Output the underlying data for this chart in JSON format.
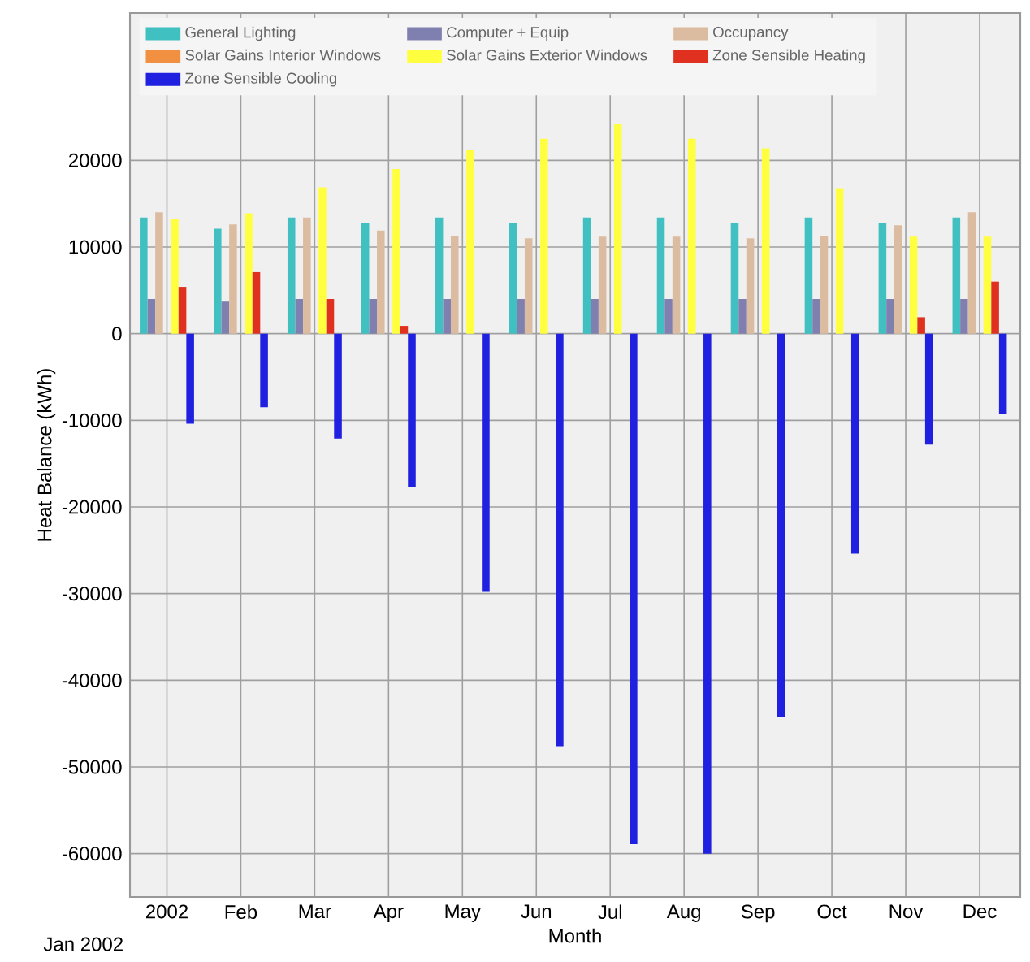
{
  "chart_data": {
    "type": "bar",
    "xlabel": "Month",
    "ylabel": "Heat Balance (kWh)",
    "categories": [
      "2002",
      "Feb",
      "Mar",
      "Apr",
      "May",
      "Jun",
      "Jul",
      "Aug",
      "Sep",
      "Oct",
      "Nov",
      "Dec"
    ],
    "series": [
      {
        "name": "General Lighting",
        "color": "#40c0c0",
        "values": [
          13400,
          12100,
          13400,
          12800,
          13400,
          12800,
          13400,
          13400,
          12800,
          13400,
          12800,
          13400
        ]
      },
      {
        "name": "Computer + Equip",
        "color": "#8080b0",
        "values": [
          4000,
          3700,
          4000,
          4000,
          4000,
          4000,
          4000,
          4000,
          4000,
          4000,
          4000,
          4000
        ]
      },
      {
        "name": "Occupancy",
        "color": "#dcbca0",
        "values": [
          14000,
          12600,
          13400,
          11900,
          11300,
          11000,
          11200,
          11200,
          11000,
          11300,
          12500,
          14000
        ]
      },
      {
        "name": "Solar Gains Interior Windows",
        "color": "#f09040",
        "values": [
          0,
          0,
          0,
          0,
          0,
          0,
          0,
          0,
          0,
          0,
          0,
          0
        ]
      },
      {
        "name": "Solar Gains Exterior Windows",
        "color": "#ffff40",
        "values": [
          13200,
          13900,
          16900,
          19000,
          21200,
          22500,
          24200,
          22500,
          21400,
          16800,
          11200,
          11200
        ]
      },
      {
        "name": "Zone Sensible Heating",
        "color": "#e03020",
        "values": [
          5400,
          7100,
          4000,
          900,
          0,
          0,
          0,
          0,
          0,
          0,
          1900,
          6000
        ]
      },
      {
        "name": "Zone Sensible Cooling",
        "color": "#2020e0",
        "values": [
          -10400,
          -8500,
          -12100,
          -17700,
          -29800,
          -47600,
          -58900,
          -60000,
          -44200,
          -25400,
          -12800,
          -9300
        ]
      }
    ],
    "ylim": [
      -65000,
      37000
    ],
    "yticks": [
      -60000,
      -50000,
      -40000,
      -30000,
      -20000,
      -10000,
      0,
      10000,
      20000
    ],
    "grid": true,
    "legend": "top left",
    "annotations": [
      "Jan 2002"
    ]
  }
}
